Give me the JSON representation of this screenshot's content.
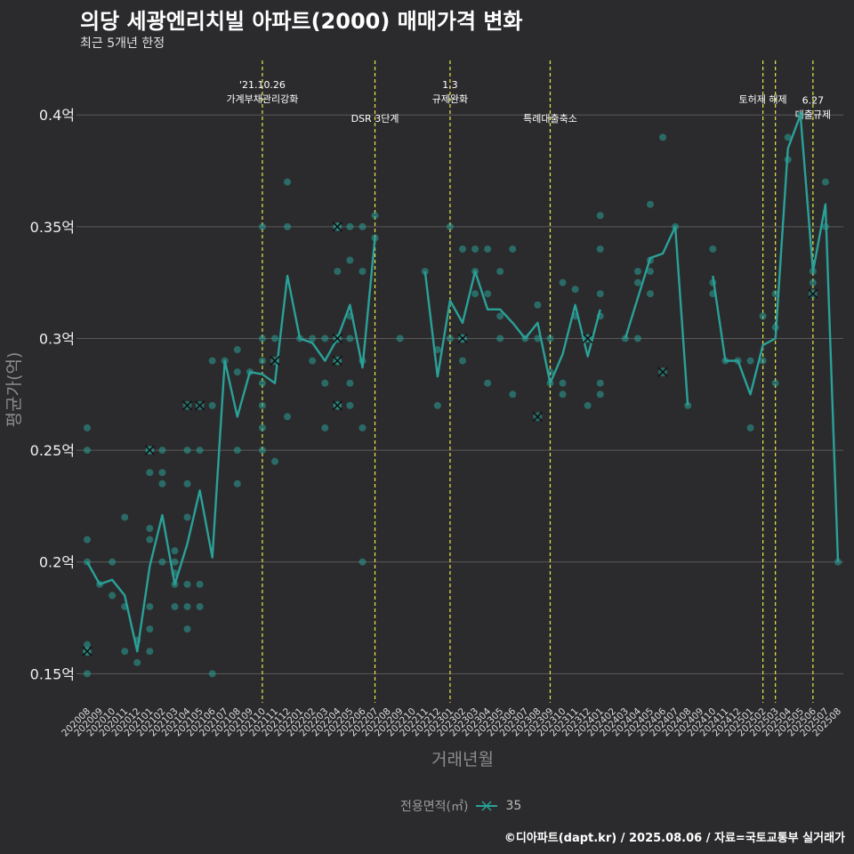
{
  "title": "의당 세광엔리치빌 아파트(2000) 매매가격 변화",
  "subtitle": "최근 5개년 한정",
  "caption": "©디아파트(dapt.kr) / 2025.08.06 / 자료=국토교통부 실거래가",
  "colors": {
    "series": "#2aa198",
    "event": "#e8e84a",
    "grid": "#5a5a5a",
    "background": "#2b2b2d"
  },
  "chart_data": {
    "type": "line",
    "xlabel": "거래년월",
    "ylabel": "평균가(억)",
    "ylim": [
      0.137,
      0.418
    ],
    "grid": true,
    "legend_position": "bottom",
    "legend_title": "전용면적(㎡)",
    "y_ticks": [
      {
        "value": 0.15,
        "label": "0.15억"
      },
      {
        "value": 0.2,
        "label": "0.2억"
      },
      {
        "value": 0.25,
        "label": "0.25억"
      },
      {
        "value": 0.3,
        "label": "0.3억"
      },
      {
        "value": 0.35,
        "label": "0.35억"
      },
      {
        "value": 0.4,
        "label": "0.4억"
      }
    ],
    "months": [
      "202008",
      "202009",
      "202010",
      "202011",
      "202012",
      "202101",
      "202102",
      "202103",
      "202104",
      "202105",
      "202106",
      "202107",
      "202108",
      "202109",
      "202110",
      "202111",
      "202112",
      "202201",
      "202202",
      "202203",
      "202204",
      "202205",
      "202206",
      "202207",
      "202208",
      "202209",
      "202210",
      "202211",
      "202212",
      "202301",
      "202302",
      "202303",
      "202304",
      "202305",
      "202306",
      "202307",
      "202308",
      "202309",
      "202310",
      "202311",
      "202312",
      "202401",
      "202402",
      "202403",
      "202404",
      "202405",
      "202406",
      "202407",
      "202408",
      "202409",
      "202410",
      "202411",
      "202412",
      "202501",
      "202502",
      "202503",
      "202504",
      "202505",
      "202506",
      "202507",
      "202508"
    ],
    "tick_labels": [
      "202008",
      "202009",
      "202010",
      "202011",
      "202012",
      "202101",
      "202102",
      "202103",
      "202104",
      "202105",
      "202106",
      "202107",
      "202108",
      "202109",
      "202110",
      "202111",
      "202112",
      "202201",
      "202202",
      "202203",
      "202204",
      "202205",
      "202206",
      "202207",
      "202208",
      "202209",
      "202210",
      "202211",
      "202212",
      "202301",
      "202302",
      "202303",
      "202304",
      "202305",
      "202306",
      "202307",
      "202308",
      "202309",
      "202310",
      "202311",
      "202312",
      "202401",
      "202402",
      "202403",
      "202404",
      "202405",
      "202406",
      "202407",
      "202408",
      "202409",
      "202410",
      "202411",
      "202412",
      "202501",
      "202502",
      "202503",
      "202504",
      "202505",
      "202506",
      "202507",
      "202508"
    ],
    "series": [
      {
        "name": "35",
        "mean_line": [
          [
            [
              0,
              0.2
            ],
            [
              1,
              0.19
            ],
            [
              2,
              0.192
            ],
            [
              3,
              0.185
            ],
            [
              4,
              0.16
            ],
            [
              5,
              0.198
            ],
            [
              6,
              0.221
            ],
            [
              7,
              0.19
            ],
            [
              8,
              0.208
            ],
            [
              9,
              0.232
            ],
            [
              10,
              0.202
            ],
            [
              11,
              0.29
            ],
            [
              12,
              0.265
            ],
            [
              13,
              0.285
            ],
            [
              14,
              0.284
            ],
            [
              15,
              0.28
            ],
            [
              16,
              0.328
            ],
            [
              17,
              0.3
            ],
            [
              18,
              0.298
            ],
            [
              19,
              0.29
            ],
            [
              20,
              0.3
            ],
            [
              21,
              0.315
            ],
            [
              22,
              0.287
            ],
            [
              23,
              0.345
            ]
          ],
          [
            [
              27,
              0.33
            ],
            [
              28,
              0.283
            ],
            [
              29,
              0.317
            ],
            [
              30,
              0.307
            ],
            [
              31,
              0.33
            ],
            [
              32,
              0.313
            ],
            [
              33,
              0.313
            ],
            [
              34,
              0.307
            ],
            [
              35,
              0.3
            ],
            [
              36,
              0.307
            ],
            [
              37,
              0.28
            ],
            [
              38,
              0.293
            ],
            [
              39,
              0.315
            ],
            [
              40,
              0.292
            ],
            [
              41,
              0.313
            ]
          ],
          [
            [
              43,
              0.3
            ],
            [
              44,
              0.318
            ],
            [
              45,
              0.336
            ],
            [
              46,
              0.338
            ],
            [
              47,
              0.35
            ],
            [
              48,
              0.27
            ]
          ],
          [
            [
              50,
              0.328
            ],
            [
              51,
              0.29
            ],
            [
              52,
              0.29
            ],
            [
              53,
              0.275
            ],
            [
              54,
              0.297
            ],
            [
              55,
              0.3
            ],
            [
              56,
              0.385
            ],
            [
              57,
              0.4
            ],
            [
              58,
              0.33
            ],
            [
              59,
              0.36
            ],
            [
              60,
              0.2
            ]
          ]
        ],
        "points": [
          [
            0,
            0.26
          ],
          [
            0,
            0.25
          ],
          [
            0,
            0.21
          ],
          [
            0,
            0.2
          ],
          [
            0,
            0.163
          ],
          [
            0,
            0.16
          ],
          [
            0,
            0.15
          ],
          [
            1,
            0.19
          ],
          [
            2,
            0.2
          ],
          [
            2,
            0.185
          ],
          [
            3,
            0.22
          ],
          [
            3,
            0.18
          ],
          [
            3,
            0.16
          ],
          [
            4,
            0.165
          ],
          [
            4,
            0.155
          ],
          [
            5,
            0.25
          ],
          [
            5,
            0.24
          ],
          [
            5,
            0.215
          ],
          [
            5,
            0.21
          ],
          [
            5,
            0.18
          ],
          [
            5,
            0.17
          ],
          [
            5,
            0.16
          ],
          [
            6,
            0.25
          ],
          [
            6,
            0.24
          ],
          [
            6,
            0.235
          ],
          [
            6,
            0.2
          ],
          [
            7,
            0.205
          ],
          [
            7,
            0.2
          ],
          [
            7,
            0.195
          ],
          [
            7,
            0.19
          ],
          [
            7,
            0.18
          ],
          [
            8,
            0.25
          ],
          [
            8,
            0.235
          ],
          [
            8,
            0.22
          ],
          [
            8,
            0.19
          ],
          [
            8,
            0.18
          ],
          [
            8,
            0.17
          ],
          [
            9,
            0.25
          ],
          [
            9,
            0.19
          ],
          [
            9,
            0.18
          ],
          [
            10,
            0.29
          ],
          [
            10,
            0.27
          ],
          [
            10,
            0.15
          ],
          [
            11,
            0.29
          ],
          [
            12,
            0.295
          ],
          [
            12,
            0.285
          ],
          [
            12,
            0.25
          ],
          [
            12,
            0.235
          ],
          [
            13,
            0.285
          ],
          [
            14,
            0.35
          ],
          [
            14,
            0.3
          ],
          [
            14,
            0.29
          ],
          [
            14,
            0.28
          ],
          [
            14,
            0.27
          ],
          [
            14,
            0.26
          ],
          [
            14,
            0.25
          ],
          [
            15,
            0.3
          ],
          [
            15,
            0.245
          ],
          [
            16,
            0.37
          ],
          [
            16,
            0.35
          ],
          [
            16,
            0.265
          ],
          [
            17,
            0.3
          ],
          [
            18,
            0.3
          ],
          [
            18,
            0.29
          ],
          [
            19,
            0.3
          ],
          [
            19,
            0.28
          ],
          [
            19,
            0.26
          ],
          [
            20,
            0.35
          ],
          [
            20,
            0.33
          ],
          [
            20,
            0.3
          ],
          [
            20,
            0.29
          ],
          [
            20,
            0.27
          ],
          [
            21,
            0.35
          ],
          [
            21,
            0.335
          ],
          [
            21,
            0.31
          ],
          [
            21,
            0.3
          ],
          [
            21,
            0.28
          ],
          [
            21,
            0.27
          ],
          [
            22,
            0.35
          ],
          [
            22,
            0.33
          ],
          [
            22,
            0.29
          ],
          [
            22,
            0.26
          ],
          [
            22,
            0.2
          ],
          [
            23,
            0.355
          ],
          [
            23,
            0.345
          ],
          [
            25,
            0.3
          ],
          [
            27,
            0.33
          ],
          [
            28,
            0.295
          ],
          [
            28,
            0.27
          ],
          [
            29,
            0.35
          ],
          [
            29,
            0.3
          ],
          [
            30,
            0.34
          ],
          [
            30,
            0.3
          ],
          [
            30,
            0.29
          ],
          [
            31,
            0.34
          ],
          [
            31,
            0.33
          ],
          [
            31,
            0.32
          ],
          [
            32,
            0.34
          ],
          [
            32,
            0.32
          ],
          [
            32,
            0.28
          ],
          [
            33,
            0.33
          ],
          [
            33,
            0.31
          ],
          [
            33,
            0.3
          ],
          [
            34,
            0.34
          ],
          [
            34,
            0.275
          ],
          [
            35,
            0.3
          ],
          [
            36,
            0.315
          ],
          [
            36,
            0.3
          ],
          [
            37,
            0.3
          ],
          [
            37,
            0.285
          ],
          [
            37,
            0.28
          ],
          [
            38,
            0.325
          ],
          [
            38,
            0.28
          ],
          [
            38,
            0.275
          ],
          [
            39,
            0.322
          ],
          [
            39,
            0.31
          ],
          [
            40,
            0.3
          ],
          [
            40,
            0.27
          ],
          [
            41,
            0.355
          ],
          [
            41,
            0.34
          ],
          [
            41,
            0.32
          ],
          [
            41,
            0.31
          ],
          [
            41,
            0.28
          ],
          [
            41,
            0.275
          ],
          [
            43,
            0.3
          ],
          [
            44,
            0.33
          ],
          [
            44,
            0.325
          ],
          [
            44,
            0.3
          ],
          [
            45,
            0.36
          ],
          [
            45,
            0.335
          ],
          [
            45,
            0.33
          ],
          [
            45,
            0.32
          ],
          [
            46,
            0.39
          ],
          [
            47,
            0.35
          ],
          [
            48,
            0.27
          ],
          [
            50,
            0.34
          ],
          [
            50,
            0.325
          ],
          [
            50,
            0.32
          ],
          [
            51,
            0.29
          ],
          [
            52,
            0.29
          ],
          [
            53,
            0.29
          ],
          [
            53,
            0.26
          ],
          [
            54,
            0.31
          ],
          [
            54,
            0.29
          ],
          [
            55,
            0.32
          ],
          [
            55,
            0.305
          ],
          [
            55,
            0.28
          ],
          [
            56,
            0.39
          ],
          [
            56,
            0.38
          ],
          [
            57,
            0.4
          ],
          [
            58,
            0.33
          ],
          [
            58,
            0.325
          ],
          [
            59,
            0.37
          ],
          [
            59,
            0.35
          ],
          [
            60,
            0.2
          ]
        ],
        "x_marks": [
          [
            0,
            0.16
          ],
          [
            5,
            0.25
          ],
          [
            8,
            0.27
          ],
          [
            9,
            0.27
          ],
          [
            15,
            0.29
          ],
          [
            20,
            0.35
          ],
          [
            20,
            0.3
          ],
          [
            20,
            0.29
          ],
          [
            20,
            0.27
          ],
          [
            30,
            0.3
          ],
          [
            36,
            0.265
          ],
          [
            40,
            0.3
          ],
          [
            46,
            0.285
          ],
          [
            58,
            0.32
          ]
        ]
      }
    ],
    "events": [
      {
        "x": 14,
        "lines": [
          "'21.10.26",
          "가계부채관리강화"
        ],
        "label_y": 0.4105
      },
      {
        "x": 23,
        "lines": [
          "DSR 3단계"
        ],
        "label_y": 0.3985
      },
      {
        "x": 29,
        "lines": [
          "1.3",
          "규제완화"
        ],
        "label_y": 0.4105
      },
      {
        "x": 37,
        "lines": [
          "특례대출축소"
        ],
        "label_y": 0.3985
      },
      {
        "x": 54,
        "lines": [
          "토허제 해제"
        ],
        "label_y": 0.407
      },
      {
        "x": 55,
        "lines": [],
        "label_y": 0.407
      },
      {
        "x": 58,
        "lines": [
          "6.27",
          "대출규제"
        ],
        "label_y": 0.4035
      }
    ]
  }
}
